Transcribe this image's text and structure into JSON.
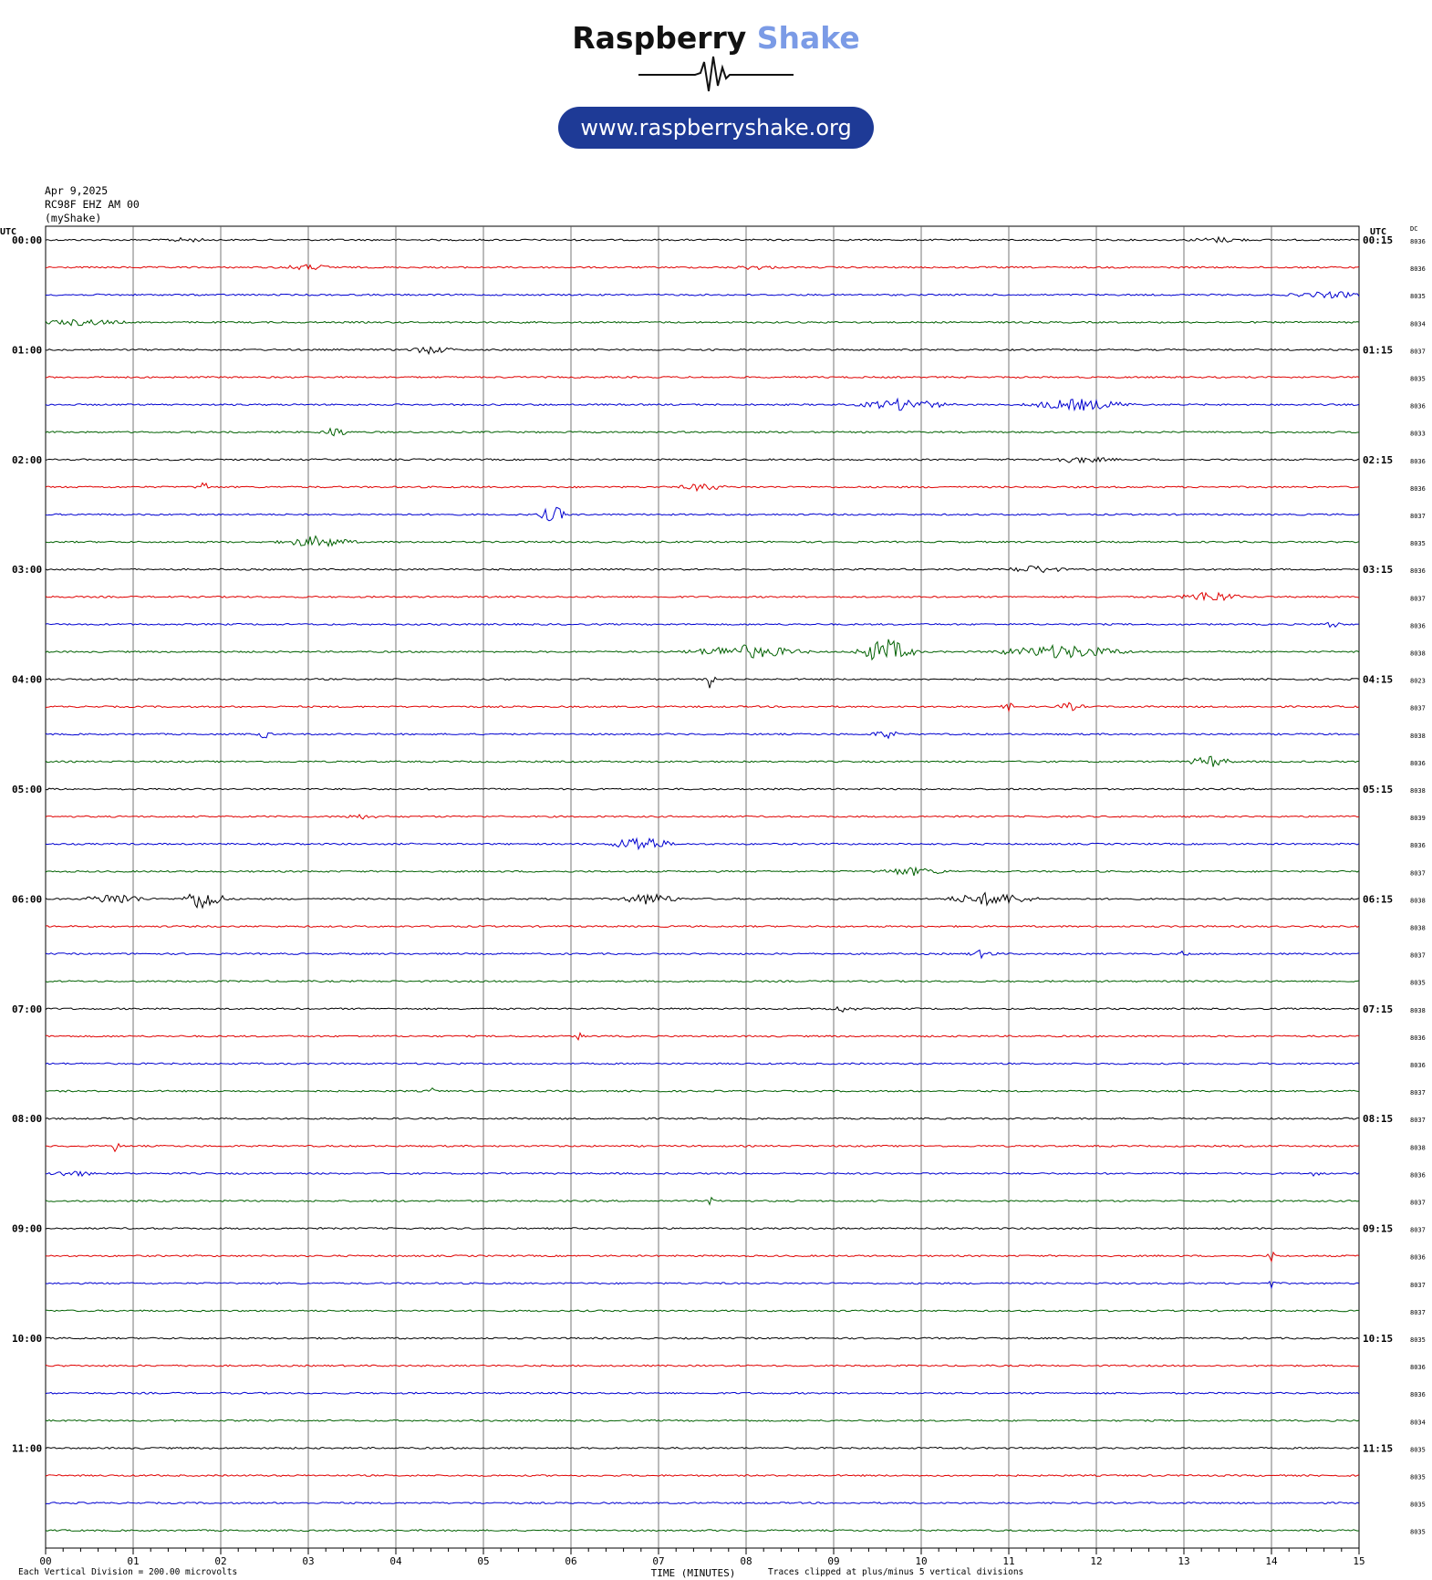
{
  "header": {
    "brand_main": "Raspberry",
    "brand_accent": "Shake",
    "url": "www.raspberryshake.org",
    "accent_color": "#7b9be6",
    "pill_color": "#1e3a96"
  },
  "meta": {
    "date": "Apr 9,2025",
    "station": "RC98F EHZ AM 00",
    "owner": "(myShake)"
  },
  "footer": {
    "left_note": "Each Vertical Division =  200.00 microvolts",
    "center_note": "Traces clipped at plus/minus 5 vertical divisions"
  },
  "chart_data": {
    "type": "line",
    "title": "",
    "xlabel": "TIME (MINUTES)",
    "left_axis_header": "UTC",
    "right_axis_header": "UTC",
    "dc_header": "DC",
    "xlim": [
      0,
      15
    ],
    "x_ticks": [
      "00",
      "01",
      "02",
      "03",
      "04",
      "05",
      "06",
      "07",
      "08",
      "09",
      "10",
      "11",
      "12",
      "13",
      "14",
      "15"
    ],
    "grid": true,
    "trace_colors": [
      "#000000",
      "#e00000",
      "#0000d0",
      "#006000"
    ],
    "left_labels": [
      "00:00",
      "01:00",
      "02:00",
      "03:00",
      "04:00",
      "05:00",
      "06:00",
      "07:00",
      "08:00",
      "09:00",
      "10:00",
      "11:00"
    ],
    "right_labels": [
      "00:15",
      "01:15",
      "02:15",
      "03:15",
      "04:15",
      "05:15",
      "06:15",
      "07:15",
      "08:15",
      "09:15",
      "10:15",
      "11:15"
    ],
    "dc_values": [
      "8036",
      "8036",
      "8035",
      "8034",
      "8037",
      "8035",
      "8036",
      "8033",
      "8036",
      "8036",
      "8037",
      "8035",
      "8036",
      "8037",
      "8036",
      "8038",
      "8023",
      "8037",
      "8038",
      "8036",
      "8038",
      "8039",
      "8036",
      "8037",
      "8038",
      "8038",
      "8037",
      "8035",
      "8038",
      "8036",
      "8036",
      "8037",
      "8037",
      "8038",
      "8036",
      "8037",
      "8037",
      "8036",
      "8037",
      "8037",
      "8035",
      "8036",
      "8036",
      "8034",
      "8035",
      "8035",
      "8035",
      "8035"
    ],
    "events": [
      {
        "row": 0,
        "minute": 1.6,
        "width": 0.3,
        "amp": 2
      },
      {
        "row": 0,
        "minute": 13.4,
        "width": 0.4,
        "amp": 2.5
      },
      {
        "row": 1,
        "minute": 3.0,
        "width": 0.4,
        "amp": 2.5
      },
      {
        "row": 1,
        "minute": 8.1,
        "width": 0.3,
        "amp": 2
      },
      {
        "row": 2,
        "minute": 14.7,
        "width": 0.6,
        "amp": 3
      },
      {
        "row": 3,
        "minute": 0.4,
        "width": 0.6,
        "amp": 3
      },
      {
        "row": 4,
        "minute": 4.4,
        "width": 0.3,
        "amp": 4
      },
      {
        "row": 6,
        "minute": 9.8,
        "width": 0.6,
        "amp": 6
      },
      {
        "row": 6,
        "minute": 11.8,
        "width": 0.7,
        "amp": 6
      },
      {
        "row": 7,
        "minute": 3.3,
        "width": 0.2,
        "amp": 5
      },
      {
        "row": 8,
        "minute": 11.8,
        "width": 0.5,
        "amp": 3
      },
      {
        "row": 9,
        "minute": 1.8,
        "width": 0.1,
        "amp": 6
      },
      {
        "row": 9,
        "minute": 7.5,
        "width": 0.3,
        "amp": 4
      },
      {
        "row": 10,
        "minute": 5.8,
        "width": 0.2,
        "amp": 9
      },
      {
        "row": 11,
        "minute": 3.1,
        "width": 0.5,
        "amp": 6
      },
      {
        "row": 12,
        "minute": 11.3,
        "width": 0.4,
        "amp": 4
      },
      {
        "row": 13,
        "minute": 13.3,
        "width": 0.4,
        "amp": 6
      },
      {
        "row": 14,
        "minute": 14.7,
        "width": 0.1,
        "amp": 5
      },
      {
        "row": 15,
        "minute": 8.0,
        "width": 0.8,
        "amp": 7
      },
      {
        "row": 15,
        "minute": 9.6,
        "width": 0.4,
        "amp": 14
      },
      {
        "row": 15,
        "minute": 11.6,
        "width": 0.9,
        "amp": 7
      },
      {
        "row": 16,
        "minute": 7.6,
        "width": 0.05,
        "amp": 18
      },
      {
        "row": 17,
        "minute": 11.0,
        "width": 0.1,
        "amp": 4
      },
      {
        "row": 17,
        "minute": 11.7,
        "width": 0.2,
        "amp": 4
      },
      {
        "row": 18,
        "minute": 2.5,
        "width": 0.1,
        "amp": 4
      },
      {
        "row": 18,
        "minute": 9.6,
        "width": 0.2,
        "amp": 4
      },
      {
        "row": 19,
        "minute": 13.3,
        "width": 0.3,
        "amp": 6
      },
      {
        "row": 21,
        "minute": 3.6,
        "width": 0.3,
        "amp": 2
      },
      {
        "row": 22,
        "minute": 6.8,
        "width": 0.4,
        "amp": 9
      },
      {
        "row": 23,
        "minute": 9.9,
        "width": 0.5,
        "amp": 4
      },
      {
        "row": 24,
        "minute": 1.8,
        "width": 0.3,
        "amp": 12
      },
      {
        "row": 24,
        "minute": 0.8,
        "width": 0.4,
        "amp": 6
      },
      {
        "row": 24,
        "minute": 10.8,
        "width": 0.6,
        "amp": 7
      },
      {
        "row": 24,
        "minute": 6.9,
        "width": 0.4,
        "amp": 6
      },
      {
        "row": 26,
        "minute": 10.7,
        "width": 0.2,
        "amp": 4
      },
      {
        "row": 26,
        "minute": 13.0,
        "width": 0.05,
        "amp": 6
      },
      {
        "row": 28,
        "minute": 9.1,
        "width": 0.2,
        "amp": 3
      },
      {
        "row": 29,
        "minute": 6.1,
        "width": 0.05,
        "amp": 7
      },
      {
        "row": 31,
        "minute": 4.4,
        "width": 0.05,
        "amp": 7
      },
      {
        "row": 33,
        "minute": 0.8,
        "width": 0.05,
        "amp": 7
      },
      {
        "row": 34,
        "minute": 0.3,
        "width": 0.3,
        "amp": 3
      },
      {
        "row": 34,
        "minute": 14.5,
        "width": 0.05,
        "amp": 7
      },
      {
        "row": 35,
        "minute": 7.6,
        "width": 0.05,
        "amp": 6
      },
      {
        "row": 37,
        "minute": 14.0,
        "width": 0.05,
        "amp": 7
      },
      {
        "row": 38,
        "minute": 14.0,
        "width": 0.05,
        "amp": 5
      }
    ]
  }
}
